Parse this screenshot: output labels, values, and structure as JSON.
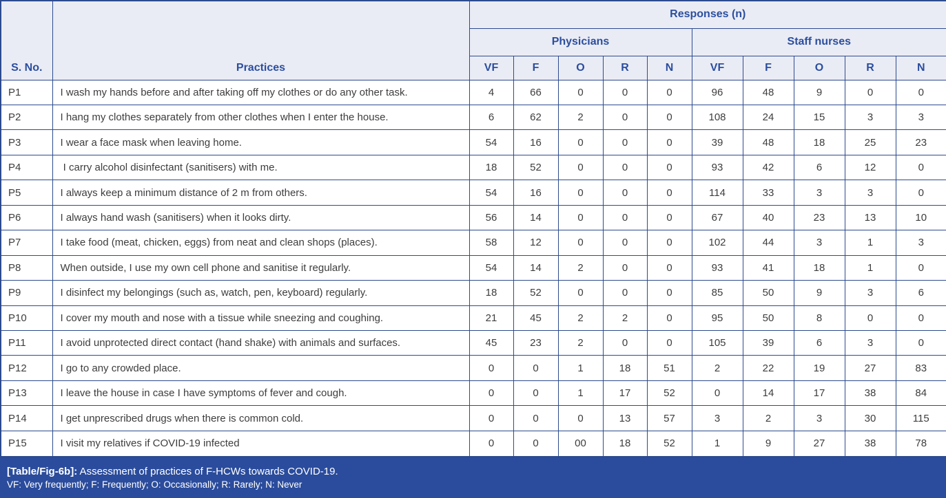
{
  "table": {
    "header": {
      "sno_label": "S. No.",
      "practices_label": "Practices",
      "responses_label": "Responses (n)",
      "groups": [
        {
          "label": "Physicians",
          "cols": [
            "VF",
            "F",
            "O",
            "R",
            "N"
          ]
        },
        {
          "label": "Staff nurses",
          "cols": [
            "VF",
            "F",
            "O",
            "R",
            "N"
          ]
        }
      ]
    },
    "rows": [
      {
        "sno": "P1",
        "practice": "I wash my hands before and after taking off my clothes or do any other task.",
        "physicians": [
          "4",
          "66",
          "0",
          "0",
          "0"
        ],
        "staff_nurses": [
          "96",
          "48",
          "9",
          "0",
          "0"
        ]
      },
      {
        "sno": "P2",
        "practice": "I hang my clothes separately from other clothes when I enter the house.",
        "physicians": [
          "6",
          "62",
          "2",
          "0",
          "0"
        ],
        "staff_nurses": [
          "108",
          "24",
          "15",
          "3",
          "3"
        ]
      },
      {
        "sno": "P3",
        "practice": "I wear a face mask when leaving home.",
        "physicians": [
          "54",
          "16",
          "0",
          "0",
          "0"
        ],
        "staff_nurses": [
          "39",
          "48",
          "18",
          "25",
          "23"
        ]
      },
      {
        "sno": "P4",
        "practice": " I carry alcohol disinfectant (sanitisers) with me.",
        "physicians": [
          "18",
          "52",
          "0",
          "0",
          "0"
        ],
        "staff_nurses": [
          "93",
          "42",
          "6",
          "12",
          "0"
        ]
      },
      {
        "sno": "P5",
        "practice": "I always keep a minimum distance of 2 m from others.",
        "physicians": [
          "54",
          "16",
          "0",
          "0",
          "0"
        ],
        "staff_nurses": [
          "114",
          "33",
          "3",
          "3",
          "0"
        ]
      },
      {
        "sno": "P6",
        "practice": "I always hand wash (sanitisers) when it looks dirty.",
        "physicians": [
          "56",
          "14",
          "0",
          "0",
          "0"
        ],
        "staff_nurses": [
          "67",
          "40",
          "23",
          "13",
          "10"
        ]
      },
      {
        "sno": "P7",
        "practice": "I take food (meat, chicken, eggs) from neat and clean shops (places).",
        "physicians": [
          "58",
          "12",
          "0",
          "0",
          "0"
        ],
        "staff_nurses": [
          "102",
          "44",
          "3",
          "1",
          "3"
        ]
      },
      {
        "sno": "P8",
        "practice": "When outside, I use my own cell phone and sanitise it regularly.",
        "physicians": [
          "54",
          "14",
          "2",
          "0",
          "0"
        ],
        "staff_nurses": [
          "93",
          "41",
          "18",
          "1",
          "0"
        ]
      },
      {
        "sno": "P9",
        "practice": "I disinfect my belongings (such as, watch, pen, keyboard) regularly.",
        "physicians": [
          "18",
          "52",
          "0",
          "0",
          "0"
        ],
        "staff_nurses": [
          "85",
          "50",
          "9",
          "3",
          "6"
        ]
      },
      {
        "sno": "P10",
        "practice": "I cover my mouth and nose with a tissue while sneezing and coughing.",
        "physicians": [
          "21",
          "45",
          "2",
          "2",
          "0"
        ],
        "staff_nurses": [
          "95",
          "50",
          "8",
          "0",
          "0"
        ]
      },
      {
        "sno": "P11",
        "practice": "I avoid unprotected direct contact (hand shake) with animals and surfaces.",
        "physicians": [
          "45",
          "23",
          "2",
          "0",
          "0"
        ],
        "staff_nurses": [
          "105",
          "39",
          "6",
          "3",
          "0"
        ]
      },
      {
        "sno": "P12",
        "practice": "I go to any crowded place.",
        "physicians": [
          "0",
          "0",
          "1",
          "18",
          "51"
        ],
        "staff_nurses": [
          "2",
          "22",
          "19",
          "27",
          "83"
        ]
      },
      {
        "sno": "P13",
        "practice": "I leave the house in case I have symptoms of fever and cough.",
        "physicians": [
          "0",
          "0",
          "1",
          "17",
          "52"
        ],
        "staff_nurses": [
          "0",
          "14",
          "17",
          "38",
          "84"
        ]
      },
      {
        "sno": "P14",
        "practice": "I get unprescribed drugs when there is common cold.",
        "physicians": [
          "0",
          "0",
          "0",
          "13",
          "57"
        ],
        "staff_nurses": [
          "3",
          "2",
          "3",
          "30",
          "115"
        ]
      },
      {
        "sno": "P15",
        "practice": "I visit my relatives if COVID-19 infected",
        "physicians": [
          "0",
          "0",
          "00",
          "18",
          "52"
        ],
        "staff_nurses": [
          "1",
          "9",
          "27",
          "38",
          "78"
        ]
      }
    ]
  },
  "footer": {
    "fig_label": "[Table/Fig-6b]:",
    "caption": " Assessment of practices of F-HCWs towards COVID-19.",
    "legend": "VF: Very frequently; F: Frequently; O: Occasionally; R: Rarely; N: Never"
  },
  "colors": {
    "border": "#2c4a8e",
    "header_bg": "#eaecf5",
    "header_text": "#2b4e9e",
    "body_text": "#3d3d3d",
    "footer_bg": "#2b4c9c",
    "footer_text": "#ffffff"
  }
}
